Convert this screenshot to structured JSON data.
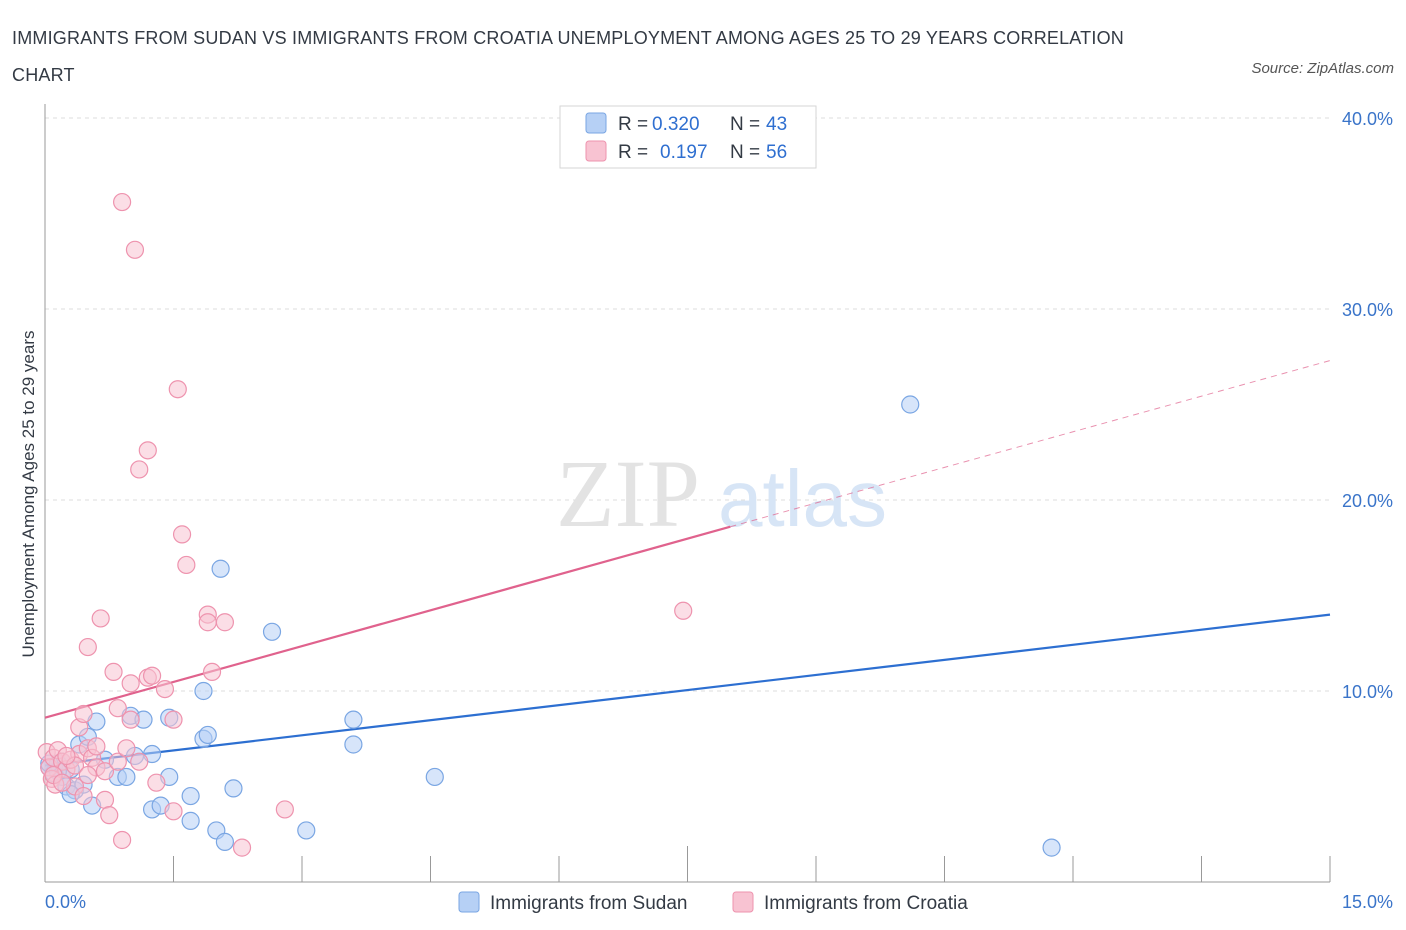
{
  "title": "IMMIGRANTS FROM SUDAN VS IMMIGRANTS FROM CROATIA UNEMPLOYMENT AMONG AGES 25 TO 29 YEARS CORRELATION CHART",
  "source": "Source: ZipAtlas.com",
  "watermark": {
    "zip": "ZIP",
    "atlas": "atlas"
  },
  "colors": {
    "sudan_fill": "#b6d0f5",
    "sudan_stroke": "#7aa6e3",
    "sudan_line": "#2d6fd1",
    "croatia_fill": "#f8c3d2",
    "croatia_stroke": "#ee93ae",
    "croatia_line": "#e0628d",
    "grid": "#dddddd",
    "axis": "#999999"
  },
  "legend": {
    "rows": [
      {
        "r_label": "R =",
        "r_value": "0.320",
        "n_label": "N =",
        "n_value": "43"
      },
      {
        "r_label": "R =",
        "r_value": "0.197",
        "n_label": "N =",
        "n_value": "56"
      }
    ]
  },
  "chart_data": {
    "type": "scatter",
    "title": "IMMIGRANTS FROM SUDAN VS IMMIGRANTS FROM CROATIA UNEMPLOYMENT AMONG AGES 25 TO 29 YEARS CORRELATION CHART",
    "xlabel": "",
    "ylabel": "Unemployment Among Ages 25 to 29 years",
    "xlim": [
      0,
      15
    ],
    "ylim": [
      0,
      40
    ],
    "x_tick_labels": [
      "0.0%",
      "15.0%"
    ],
    "y_ticks": [
      10,
      20,
      30,
      40
    ],
    "y_tick_labels": [
      "10.0%",
      "20.0%",
      "30.0%",
      "40.0%"
    ],
    "grid": true,
    "legend_placement": "top-center",
    "series": [
      {
        "name": "Immigrants from Sudan",
        "points": [
          [
            0.05,
            6.0
          ],
          [
            0.1,
            5.7
          ],
          [
            0.15,
            6.2
          ],
          [
            0.2,
            5.5
          ],
          [
            0.25,
            5.0
          ],
          [
            0.3,
            5.9
          ],
          [
            0.35,
            4.8
          ],
          [
            0.4,
            7.2
          ],
          [
            0.45,
            5.1
          ],
          [
            0.5,
            7.6
          ],
          [
            0.55,
            4.0
          ],
          [
            0.6,
            8.4
          ],
          [
            0.7,
            6.4
          ],
          [
            0.85,
            5.5
          ],
          [
            0.95,
            5.5
          ],
          [
            1.0,
            8.7
          ],
          [
            1.05,
            6.6
          ],
          [
            1.15,
            8.5
          ],
          [
            1.25,
            6.7
          ],
          [
            1.25,
            3.8
          ],
          [
            1.35,
            4.0
          ],
          [
            1.45,
            8.6
          ],
          [
            1.45,
            5.5
          ],
          [
            1.7,
            4.5
          ],
          [
            1.7,
            3.2
          ],
          [
            1.85,
            10.0
          ],
          [
            1.85,
            7.5
          ],
          [
            1.9,
            7.7
          ],
          [
            2.0,
            2.7
          ],
          [
            2.05,
            16.4
          ],
          [
            2.1,
            2.1
          ],
          [
            2.2,
            4.9
          ],
          [
            2.65,
            13.1
          ],
          [
            3.05,
            2.7
          ],
          [
            3.6,
            7.2
          ],
          [
            3.6,
            8.5
          ],
          [
            4.55,
            5.5
          ],
          [
            10.1,
            25.0
          ],
          [
            11.75,
            1.8
          ],
          [
            0.2,
            6.3
          ],
          [
            0.3,
            4.6
          ],
          [
            0.15,
            5.8
          ],
          [
            0.05,
            6.2
          ]
        ],
        "trend": {
          "x": [
            0,
            15
          ],
          "y": [
            6.1,
            14.0
          ]
        }
      },
      {
        "name": "Immigrants from Croatia",
        "points": [
          [
            0.02,
            6.8
          ],
          [
            0.05,
            6.0
          ],
          [
            0.08,
            5.4
          ],
          [
            0.1,
            6.5
          ],
          [
            0.12,
            5.1
          ],
          [
            0.15,
            6.9
          ],
          [
            0.2,
            6.3
          ],
          [
            0.25,
            5.9
          ],
          [
            0.3,
            6.4
          ],
          [
            0.35,
            5.0
          ],
          [
            0.4,
            6.7
          ],
          [
            0.4,
            8.1
          ],
          [
            0.45,
            4.5
          ],
          [
            0.45,
            8.8
          ],
          [
            0.5,
            12.3
          ],
          [
            0.5,
            7.0
          ],
          [
            0.55,
            6.5
          ],
          [
            0.6,
            7.1
          ],
          [
            0.6,
            6.0
          ],
          [
            0.65,
            13.8
          ],
          [
            0.7,
            5.8
          ],
          [
            0.7,
            4.3
          ],
          [
            0.75,
            3.5
          ],
          [
            0.8,
            11.0
          ],
          [
            0.85,
            6.3
          ],
          [
            0.85,
            9.1
          ],
          [
            0.9,
            2.2
          ],
          [
            0.9,
            35.6
          ],
          [
            0.95,
            7.0
          ],
          [
            1.0,
            10.4
          ],
          [
            1.0,
            8.5
          ],
          [
            1.05,
            33.1
          ],
          [
            1.1,
            21.6
          ],
          [
            1.1,
            6.3
          ],
          [
            1.2,
            22.6
          ],
          [
            1.2,
            10.7
          ],
          [
            1.25,
            10.8
          ],
          [
            1.3,
            5.2
          ],
          [
            1.4,
            10.1
          ],
          [
            1.5,
            8.5
          ],
          [
            1.5,
            3.7
          ],
          [
            1.55,
            25.8
          ],
          [
            1.6,
            18.2
          ],
          [
            1.65,
            16.6
          ],
          [
            1.9,
            14.0
          ],
          [
            1.9,
            13.6
          ],
          [
            1.95,
            11.0
          ],
          [
            2.1,
            13.6
          ],
          [
            2.3,
            1.8
          ],
          [
            2.8,
            3.8
          ],
          [
            7.45,
            14.2
          ],
          [
            0.1,
            5.6
          ],
          [
            0.2,
            5.2
          ],
          [
            0.35,
            6.1
          ],
          [
            0.5,
            5.6
          ],
          [
            0.25,
            6.6
          ]
        ],
        "trend": {
          "x": [
            0,
            8.0
          ],
          "y": [
            8.6,
            18.6
          ]
        },
        "trend_extension": {
          "x": [
            8.0,
            15
          ],
          "y": [
            18.6,
            27.3
          ]
        }
      }
    ]
  },
  "bottom_legend": [
    {
      "label": "Immigrants from Sudan"
    },
    {
      "label": "Immigrants from Croatia"
    }
  ]
}
